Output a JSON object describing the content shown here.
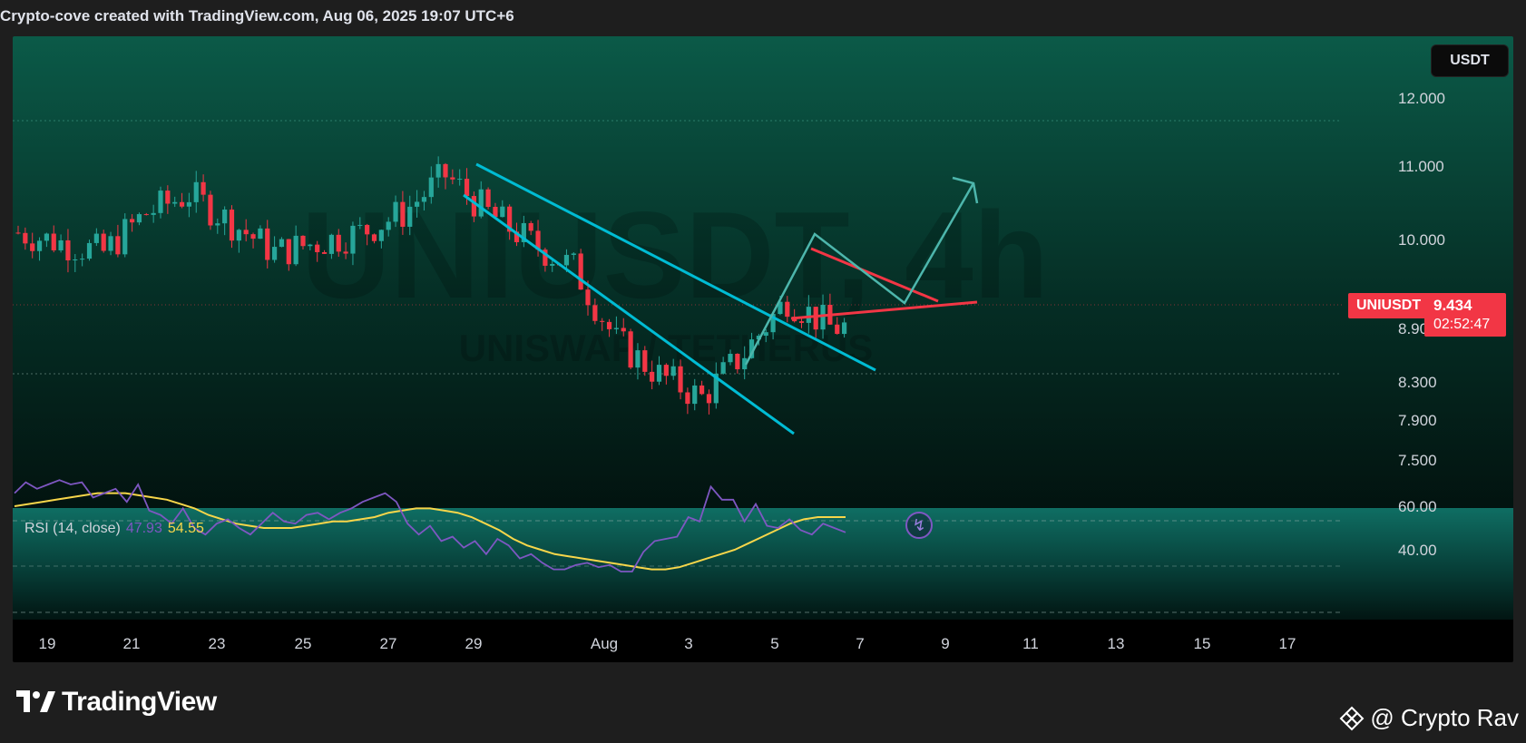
{
  "header": {
    "text": "Crypto-cove created with TradingView.com, Aug 06, 2025 19:07 UTC+6"
  },
  "currency_button": "USDT",
  "watermark": {
    "symbol": "UNIUSDT, 4h",
    "subtitle": "UNISWAP / TETHERUS"
  },
  "symbol_tag": "UNIUSDT",
  "last_price": "9.434",
  "countdown": "02:52:47",
  "rsi_legend": {
    "label": "RSI (14, close)",
    "rsi_value": "47.93",
    "ma_value": "54.55"
  },
  "colors": {
    "up": "#26a69a",
    "down": "#f23645",
    "channel_line": "#00bcd4",
    "triangle_line": "#f23645",
    "arrow": "#4db6ac",
    "rsi_line": "#7e57c2",
    "rsi_ma": "#f7d64a"
  },
  "icons": {
    "replay": "lightning-bolt-icon",
    "logo": "tradingview-logo-icon",
    "credit": "binance-diamond-icon"
  },
  "branding": {
    "logo_text": "TradingView",
    "credit_text": "@ Crypto Rav"
  },
  "chart_data": [
    {
      "type": "candlestick",
      "title": "UNIUSDT, 4h",
      "price_axis_ticks": [
        "12.000",
        "11.000",
        "10.000",
        "9.434",
        "8.900",
        "8.300",
        "7.900",
        "7.500"
      ],
      "time_axis_ticks": [
        "19",
        "21",
        "23",
        "25",
        "27",
        "29",
        "Aug",
        "3",
        "5",
        "7",
        "9",
        "11",
        "13",
        "15",
        "17"
      ],
      "scale": "log",
      "ylim": [
        7.3,
        12.6
      ],
      "candles_approx_close": [
        [
          "Jul 18",
          10.35
        ],
        [
          "Jul 19",
          10.25
        ],
        [
          "Jul 20",
          10.15
        ],
        [
          "Jul 21",
          10.55
        ],
        [
          "Jul 22",
          10.75
        ],
        [
          "Jul 23",
          10.45
        ],
        [
          "Jul 24",
          10.15
        ],
        [
          "Jul 25",
          10.25
        ],
        [
          "Jul 26",
          10.35
        ],
        [
          "Jul 27",
          10.55
        ],
        [
          "Jul 28",
          10.95
        ],
        [
          "Jul 29",
          10.55
        ],
        [
          "Jul 30",
          10.25
        ],
        [
          "Jul 31",
          10.0
        ],
        [
          "Aug 1",
          9.3
        ],
        [
          "Aug 2",
          9.0
        ],
        [
          "Aug 3",
          8.8
        ],
        [
          "Aug 4",
          9.2
        ],
        [
          "Aug 5",
          9.7
        ],
        [
          "Aug 6",
          9.434
        ]
      ],
      "annotations": [
        "descending channel (cyan)",
        "symmetrical triangle (red)",
        "projected breakout arrow up to ~11.0"
      ]
    },
    {
      "type": "line",
      "title": "RSI (14, close)",
      "ticks": [
        "60.00",
        "40.00"
      ],
      "levels": [
        70,
        50,
        30
      ],
      "ylim": [
        28,
        75
      ],
      "series": [
        {
          "name": "RSI",
          "values": [
            66,
            71,
            68,
            70,
            72,
            70,
            71,
            64,
            66,
            68,
            62,
            70,
            58,
            56,
            52,
            59,
            50,
            47,
            52,
            54,
            50,
            47,
            52,
            57,
            53,
            52,
            56,
            57,
            54,
            57,
            59,
            62,
            64,
            66,
            62,
            52,
            47,
            51,
            44,
            46,
            41,
            44,
            38,
            45,
            42,
            36,
            38,
            34,
            31,
            31,
            33,
            34,
            32,
            33,
            30,
            30,
            39,
            44,
            45,
            46,
            55,
            53,
            69,
            63,
            63,
            53,
            61,
            51,
            50,
            54,
            49,
            47,
            52,
            50,
            48
          ]
        },
        {
          "name": "RSI MA",
          "values": [
            60,
            61,
            62,
            63,
            64,
            65,
            66,
            66,
            66,
            65,
            64,
            63,
            61,
            59,
            56,
            54,
            52,
            51,
            50,
            50,
            50,
            51,
            52,
            53,
            53,
            54,
            55,
            57,
            58,
            59,
            59,
            58,
            57,
            55,
            52,
            49,
            45,
            42,
            40,
            38,
            37,
            36,
            35,
            34,
            33,
            32,
            31,
            31,
            32,
            34,
            36,
            38,
            40,
            43,
            46,
            49,
            52,
            54,
            55,
            55,
            55
          ]
        }
      ]
    }
  ]
}
